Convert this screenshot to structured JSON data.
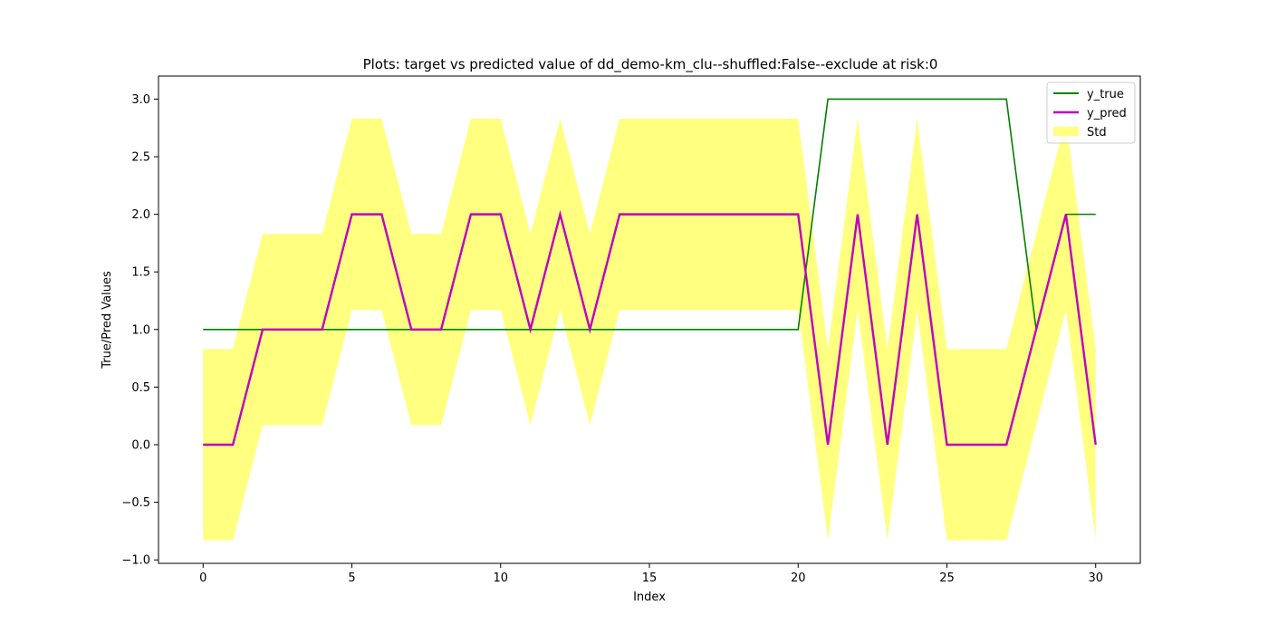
{
  "chart_data": {
    "type": "line",
    "title": "Plots: target vs predicted value of dd_demo-km_clu--shuffled:False--exclude at risk:0",
    "xlabel": "Index",
    "ylabel": "True/Pred Values",
    "xlim": [
      -1.5,
      31.5
    ],
    "ylim": [
      -1.03,
      3.2
    ],
    "xticks": [
      0,
      5,
      10,
      15,
      20,
      25,
      30
    ],
    "yticks": [
      -1.0,
      -0.5,
      0.0,
      0.5,
      1.0,
      1.5,
      2.0,
      2.5,
      3.0
    ],
    "x": [
      0,
      1,
      2,
      3,
      4,
      5,
      6,
      7,
      8,
      9,
      10,
      11,
      12,
      13,
      14,
      15,
      16,
      17,
      18,
      19,
      20,
      21,
      22,
      23,
      24,
      25,
      26,
      27,
      28,
      29,
      30
    ],
    "grid": false,
    "legend_position": "top-right",
    "series": [
      {
        "name": "y_true",
        "color": "#008000",
        "values": [
          1,
          1,
          1,
          1,
          1,
          1,
          1,
          1,
          1,
          1,
          1,
          1,
          1,
          1,
          1,
          1,
          1,
          1,
          1,
          1,
          1,
          3,
          3,
          3,
          3,
          3,
          3,
          3,
          1,
          2,
          2
        ]
      },
      {
        "name": "y_pred",
        "color": "#bf00bf",
        "values": [
          0,
          0,
          1,
          1,
          1,
          2,
          2,
          1,
          1,
          2,
          2,
          1,
          2,
          1,
          2,
          2,
          2,
          2,
          2,
          2,
          2,
          0,
          2,
          0,
          2,
          0,
          0,
          0,
          1,
          2,
          0
        ]
      }
    ],
    "band": {
      "name": "Std",
      "color": "#ffff80",
      "std": 0.83
    }
  }
}
